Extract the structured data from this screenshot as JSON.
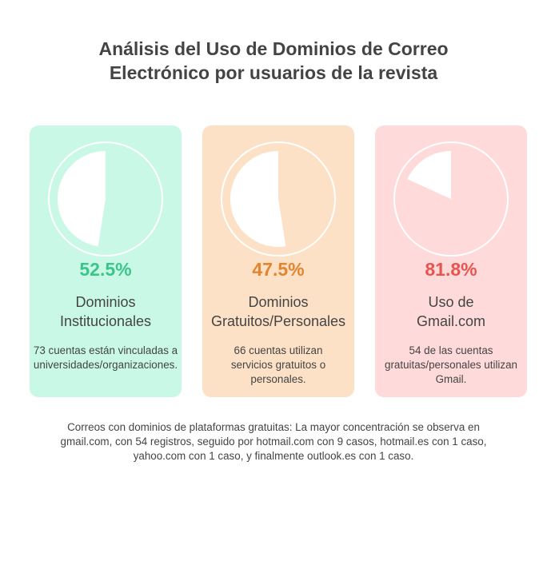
{
  "title_lines": [
    "Análisis del Uso de Dominios de Correo",
    "Electrónico por usuarios de la revista"
  ],
  "chart_data": [
    {
      "type": "pie",
      "value_percent": 52.5,
      "percent_label": "52.5%",
      "label_lines": [
        "Dominios",
        "Institucionales"
      ],
      "description_lines": [
        "73 cuentas están vinculadas a",
        "universidades/organizaciones."
      ],
      "colors": {
        "background": "#c9f9e6",
        "accent": "#3cc58a"
      }
    },
    {
      "type": "pie",
      "value_percent": 47.5,
      "percent_label": "47.5%",
      "label_lines": [
        "Dominios",
        "Gratuitos/Personales"
      ],
      "description_lines": [
        "66 cuentas utilizan",
        "servicios gratuitos o",
        "personales."
      ],
      "colors": {
        "background": "#fde1c7",
        "accent": "#e3852e"
      }
    },
    {
      "type": "pie",
      "value_percent": 81.8,
      "percent_label": "81.8%",
      "label_lines": [
        "Uso de",
        "Gmail.com"
      ],
      "description_lines": [
        "54 de las cuentas",
        "gratuitas/personales utilizan",
        "Gmail."
      ],
      "colors": {
        "background": "#ffdada",
        "accent": "#e8554f"
      }
    }
  ],
  "footer_lines": [
    "Correos con dominios de plataformas gratuitas: La mayor concentración se observa en",
    "gmail.com, con 54 registros, seguido por hotmail.com con 9 casos, hotmail.es con 1 caso,",
    "yahoo.com con 1 caso, y finalmente outlook.es con 1 caso."
  ]
}
